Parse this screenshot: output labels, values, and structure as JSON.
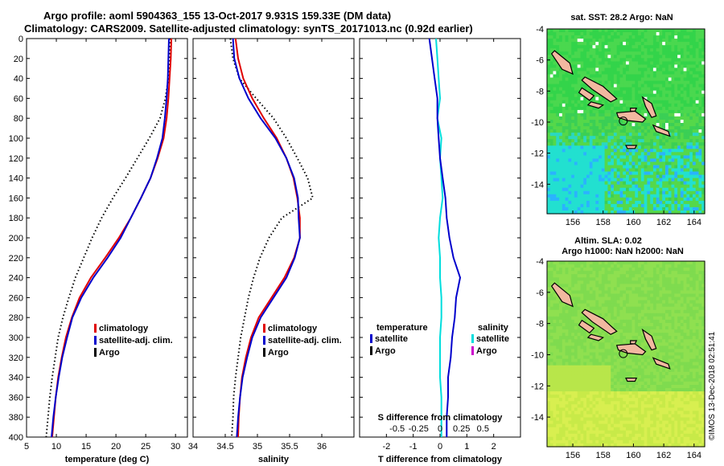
{
  "figure": {
    "title_line1": "Argo profile: aoml 5904363_155 13-Oct-2017 9.931S 159.33E (DM data)",
    "title_line2": "Climatology: CARS2009. Satellite-adjusted climatology: synTS_20171013.nc (0.92d earlier)",
    "stamp": "©IMOS 13-Dec-2018 02:51:41",
    "colors": {
      "climatology": "#e00000",
      "satellite": "#0000cc",
      "argo": "#000000",
      "satellite_diff": "#00dddd",
      "argo_diff": "#cc00cc"
    }
  },
  "chart_data": [
    {
      "type": "line",
      "name": "temperature",
      "xlabel": "temperature (deg C)",
      "ylabel": "",
      "xlim": [
        5,
        32
      ],
      "ylim": [
        400,
        0
      ],
      "xticks": [
        "5",
        "10",
        "15",
        "20",
        "25",
        "30"
      ],
      "xtick_values": [
        5,
        10,
        15,
        20,
        25,
        30
      ],
      "yticks": [
        "0",
        "20",
        "40",
        "60",
        "80",
        "100",
        "120",
        "140",
        "160",
        "180",
        "200",
        "220",
        "240",
        "260",
        "280",
        "300",
        "320",
        "340",
        "360",
        "380",
        "400"
      ],
      "ytick_values": [
        0,
        20,
        40,
        60,
        80,
        100,
        120,
        140,
        160,
        180,
        200,
        220,
        240,
        260,
        280,
        300,
        320,
        340,
        360,
        380,
        400
      ],
      "depth": [
        0,
        20,
        40,
        60,
        80,
        100,
        120,
        140,
        160,
        180,
        200,
        220,
        240,
        260,
        280,
        300,
        320,
        340,
        360,
        380,
        400
      ],
      "series": [
        {
          "name": "climatology",
          "values": [
            29.3,
            29.2,
            29.0,
            28.8,
            28.5,
            28.0,
            27.0,
            25.8,
            24.2,
            22.5,
            20.5,
            18.2,
            15.8,
            13.9,
            12.6,
            11.6,
            10.9,
            10.3,
            9.9,
            9.6,
            9.3
          ]
        },
        {
          "name": "satellite-adj. clim.",
          "values": [
            28.9,
            28.8,
            28.7,
            28.5,
            28.2,
            27.8,
            26.9,
            25.8,
            24.2,
            22.5,
            20.8,
            18.6,
            16.2,
            14.2,
            12.7,
            11.8,
            11.0,
            10.4,
            9.9,
            9.5,
            9.2
          ]
        },
        {
          "name": "Argo",
          "values": [
            29.1,
            29.0,
            28.8,
            28.3,
            27.4,
            25.6,
            23.6,
            21.6,
            19.5,
            17.6,
            16.0,
            14.6,
            13.2,
            12.1,
            11.1,
            10.3,
            9.8,
            9.3,
            8.9,
            8.6,
            8.3
          ]
        }
      ],
      "legend": [
        "climatology",
        "satellite-adj. clim.",
        "Argo"
      ],
      "legend_position": "lower-center"
    },
    {
      "type": "line",
      "name": "salinity",
      "xlabel": "salinity",
      "xlim": [
        34.0,
        36.5
      ],
      "ylim": [
        400,
        0
      ],
      "xticks": [
        "34",
        "34.5",
        "35",
        "35.5",
        "36"
      ],
      "xtick_values": [
        34,
        34.5,
        35,
        35.5,
        36
      ],
      "depth": [
        0,
        20,
        40,
        60,
        80,
        100,
        120,
        140,
        160,
        180,
        200,
        220,
        240,
        260,
        280,
        300,
        320,
        340,
        360,
        380,
        400
      ],
      "series": [
        {
          "name": "climatology",
          "values": [
            34.66,
            34.7,
            34.78,
            34.92,
            35.1,
            35.3,
            35.45,
            35.56,
            35.62,
            35.66,
            35.66,
            35.57,
            35.42,
            35.22,
            35.02,
            34.9,
            34.82,
            34.76,
            34.73,
            34.71,
            34.7
          ]
        },
        {
          "name": "satellite-adj. clim.",
          "values": [
            34.62,
            34.64,
            34.72,
            34.86,
            35.05,
            35.28,
            35.45,
            35.57,
            35.63,
            35.64,
            35.66,
            35.58,
            35.45,
            35.25,
            35.05,
            34.92,
            34.84,
            34.77,
            34.73,
            34.7,
            34.68
          ]
        },
        {
          "name": "Argo",
          "values": [
            34.58,
            34.62,
            34.72,
            34.98,
            35.25,
            35.45,
            35.62,
            35.78,
            35.86,
            35.38,
            35.18,
            35.04,
            34.94,
            34.86,
            34.8,
            34.74,
            34.7,
            34.66,
            34.63,
            34.62,
            34.6
          ]
        }
      ],
      "legend": [
        "climatology",
        "satellite-adj. clim.",
        "Argo"
      ],
      "legend_position": "lower-center"
    },
    {
      "type": "line",
      "name": "difference",
      "xlabel": "T difference from climatology",
      "xlabel_top": "S difference from climatology",
      "xlim": [
        -3,
        3
      ],
      "ylim": [
        400,
        0
      ],
      "xticks": [
        "-2",
        "-1",
        "0",
        "1",
        "2"
      ],
      "xtick_values": [
        -2,
        -1,
        0,
        1,
        2
      ],
      "sticks": [
        "-0.5",
        "-0.25",
        "0",
        "0.25",
        "0.5"
      ],
      "stick_values": [
        -1.6,
        -0.8,
        0.0,
        0.8,
        1.6
      ],
      "depth": [
        0,
        20,
        40,
        60,
        80,
        100,
        120,
        140,
        160,
        180,
        200,
        220,
        240,
        260,
        280,
        300,
        320,
        340,
        360,
        380,
        400
      ],
      "series": [
        {
          "name": "temperature satellite",
          "values": [
            -0.4,
            -0.3,
            -0.2,
            -0.1,
            -0.1,
            -0.05,
            0.0,
            0.1,
            0.2,
            0.25,
            0.35,
            0.5,
            0.75,
            0.6,
            0.55,
            0.45,
            0.4,
            0.3,
            0.3,
            0.25,
            0.25
          ]
        },
        {
          "name": "salinity satellite",
          "values": [
            -0.15,
            -0.1,
            -0.05,
            0.0,
            -0.1,
            0.05,
            0.0,
            0.05,
            0.1,
            0.0,
            -0.05,
            0.0,
            0.0,
            0.05,
            0.05,
            0.0,
            0.0,
            0.0,
            0.05,
            0.05,
            0.05
          ]
        }
      ],
      "legend_temperature": {
        "heading": "temperature",
        "items": [
          "satellite",
          "Argo"
        ]
      },
      "legend_salinity": {
        "heading": "salinity",
        "items": [
          "satellite",
          "Argo"
        ]
      }
    },
    {
      "type": "heatmap",
      "name": "sst-map",
      "title": "sat. SST: 28.2 Argo: NaN",
      "xticks": [
        "156",
        "158",
        "160",
        "162",
        "164"
      ],
      "xtick_values": [
        156,
        158,
        160,
        162,
        164
      ],
      "yticks": [
        "-4",
        "-6",
        "-8",
        "-10",
        "-12",
        "-14"
      ],
      "ytick_values": [
        -4,
        -6,
        -8,
        -10,
        -12,
        -14
      ],
      "xlim": [
        154.3,
        164.7
      ],
      "ylim": [
        -15.9,
        -4
      ],
      "marker": {
        "lon": 159.33,
        "lat": -9.931
      }
    },
    {
      "type": "heatmap",
      "name": "sla-map",
      "title_line1": "Altim. SLA: 0.02",
      "title_line2": "Argo h1000: NaN h2000: NaN",
      "xticks": [
        "156",
        "158",
        "160",
        "162",
        "164"
      ],
      "xtick_values": [
        156,
        158,
        160,
        162,
        164
      ],
      "yticks": [
        "-4",
        "-6",
        "-8",
        "-10",
        "-12",
        "-14"
      ],
      "ytick_values": [
        -4,
        -6,
        -8,
        -10,
        -12,
        -14
      ],
      "xlim": [
        154.3,
        164.7
      ],
      "ylim": [
        -15.9,
        -4
      ],
      "marker": {
        "lon": 159.33,
        "lat": -9.931
      }
    }
  ]
}
